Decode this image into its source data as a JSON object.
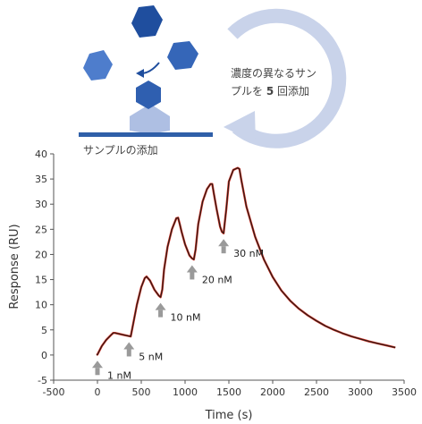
{
  "diagram": {
    "cycle_text_line1": "濃度の異なるサン",
    "cycle_text_line2_pre": "プルを ",
    "cycle_text_line2_num": "5",
    "cycle_text_line2_post": " 回添加",
    "surface_label": "サンプルの添加",
    "colors": {
      "molecule_dark": "#1f4e9e",
      "molecule_light": "#5b8ad6",
      "cycle_arrow": "#c9d3ea",
      "surface": "#2f5fa8",
      "ligand": "#aebfe3"
    },
    "icons": [
      "hexagon-molecule-icon",
      "curved-arrow-icon",
      "cycle-arrow-icon"
    ]
  },
  "chart_data": {
    "type": "line",
    "title": "",
    "xlabel": "Time (s)",
    "ylabel": "Response (RU)",
    "xlim": [
      -500,
      3500
    ],
    "ylim": [
      -5,
      40
    ],
    "xticks": [
      -500,
      0,
      500,
      1000,
      1500,
      2000,
      2500,
      3000,
      3500
    ],
    "yticks": [
      -5,
      0,
      5,
      10,
      15,
      20,
      25,
      30,
      35,
      40
    ],
    "grid": false,
    "line_color": "#2a1a14",
    "fit_color": "#d9362b",
    "series": [
      {
        "x": [
          -10,
          0,
          20,
          50,
          100,
          150,
          180,
          200,
          250,
          300,
          350,
          380,
          400,
          450,
          500,
          540,
          560,
          600,
          650,
          700,
          720,
          740,
          760,
          800,
          850,
          900,
          920,
          940,
          960,
          1000,
          1050,
          1080,
          1100,
          1120,
          1150,
          1200,
          1250,
          1290,
          1310,
          1330,
          1360,
          1400,
          1420,
          1440,
          1470,
          1500,
          1550,
          1600,
          1620,
          1640,
          1700,
          1800,
          1900,
          2000,
          2100,
          2200,
          2300,
          2400,
          2500,
          2600,
          2700,
          2800,
          2900,
          3000,
          3100,
          3200,
          3300,
          3400
        ],
        "y": [
          0,
          0.1,
          0.8,
          1.8,
          3.0,
          3.9,
          4.4,
          4.4,
          4.2,
          4.0,
          3.8,
          3.7,
          5.5,
          10.0,
          13.5,
          15.3,
          15.6,
          14.8,
          13.0,
          11.8,
          11.5,
          13.0,
          17.0,
          21.5,
          25.0,
          27.2,
          27.3,
          26.0,
          24.5,
          22.0,
          19.8,
          19.2,
          19.0,
          21.0,
          26.0,
          30.5,
          33.0,
          34.0,
          34.0,
          32.0,
          29.0,
          25.5,
          24.5,
          24.2,
          29.0,
          34.5,
          36.8,
          37.2,
          37.0,
          35.0,
          29.5,
          23.5,
          19.0,
          15.5,
          12.8,
          10.8,
          9.2,
          7.9,
          6.8,
          5.8,
          5.0,
          4.3,
          3.7,
          3.2,
          2.7,
          2.3,
          1.9,
          1.5
        ]
      }
    ],
    "injections": [
      {
        "label": "1 nM",
        "x": 0,
        "y": -0.6
      },
      {
        "label": "5 nM",
        "x": 360,
        "y": 3.1
      },
      {
        "label": "10 nM",
        "x": 720,
        "y": 10.9
      },
      {
        "label": "20 nM",
        "x": 1080,
        "y": 18.4
      },
      {
        "label": "30 nM",
        "x": 1440,
        "y": 23.6
      }
    ]
  }
}
